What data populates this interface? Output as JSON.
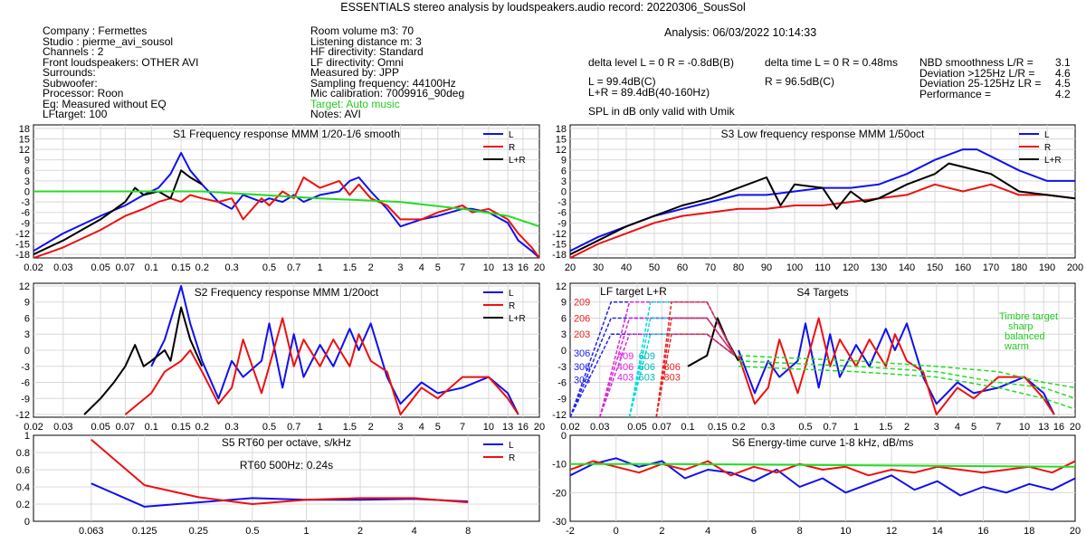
{
  "title": "ESSENTIALS stereo analysis by loudspeakers.audio       record: 20220306_SousSol",
  "info_left": [
    "Company : Fermettes",
    "Studio : pierme_avi_sousol",
    "Channels : 2",
    "Front loudspeakers: OTHER AVI",
    "Surrounds:",
    "Subwoofer:",
    "Processor: Roon",
    "Eq: Measured without EQ",
    "LFtarget: 100"
  ],
  "info_mid": [
    "Room volume m3: 70",
    "Listening distance m: 3",
    "HF directivity: Standard",
    "LF directivity: Omni",
    "Measured by: JPP",
    "Sampling frequency: 44100Hz",
    "Mic calibration: 7009916_90deg"
  ],
  "target_note": "Target: Auto music",
  "notes": "Notes: AVI",
  "analysis": "Analysis: 06/03/2022 10:14:33",
  "delta_level": "delta level L = 0  R = -0.8dB(B)",
  "delta_time": "delta time  L = 0  R = 0.48ms",
  "spl_l": "L =      99.4dB(C)",
  "spl_lr": "L+R = 89.4dB(40-160Hz)",
  "spl_r": "R =      96.5dB(C)",
  "spl_note": "SPL in dB only valid with Umik",
  "metrics": [
    {
      "label": "NBD smoothness L/R =",
      "value": "3.1"
    },
    {
      "label": "Deviation >125Hz L/R =",
      "value": "4.6"
    },
    {
      "label": "Deviation 25-125Hz LR =",
      "value": "4.5"
    },
    {
      "label": "Performance =",
      "value": "4.2"
    }
  ],
  "colors": {
    "L": "#1010ee",
    "R": "#ee1010",
    "LR": "#000000",
    "target": "#22dd22",
    "L_light": "#7777ee",
    "R_light": "#ee7777"
  },
  "chart_data": [
    {
      "id": "S1",
      "type": "line",
      "title": "S1  Frequency response MMM 1/20-1/6 smooth",
      "xscale": "log",
      "xunit": "kHz",
      "xlim": [
        0.02,
        20
      ],
      "ylim": [
        -19,
        19
      ],
      "xticks": [
        "0.02",
        "0.03",
        "0.05",
        "0.07",
        "0.1",
        "0.15",
        "0.2",
        "0.3",
        "0.5",
        "0.7",
        "1",
        "1.5",
        "2",
        "3",
        "4",
        "5",
        "7",
        "10",
        "13",
        "16",
        "20"
      ],
      "yticks": [
        "18",
        "15",
        "12",
        "9",
        "6",
        "3",
        "0",
        "-3",
        "-6",
        "-9",
        "-12",
        "-15",
        "-18"
      ],
      "legend": [
        "L",
        "R",
        "L+R"
      ],
      "series": [
        {
          "name": "L",
          "x": [
            0.02,
            0.03,
            0.05,
            0.07,
            0.09,
            0.11,
            0.13,
            0.15,
            0.17,
            0.2,
            0.25,
            0.3,
            0.35,
            0.45,
            0.5,
            0.6,
            0.7,
            0.8,
            1.0,
            1.3,
            1.5,
            1.7,
            2.0,
            2.5,
            3.0,
            4.0,
            5.0,
            7.0,
            8.0,
            10,
            13,
            15,
            18,
            20
          ],
          "y": [
            -17,
            -12,
            -7,
            -4,
            -1,
            1,
            5,
            11,
            6,
            2,
            -3,
            -5,
            -1,
            -3,
            -2,
            -3,
            -1,
            -3,
            -1,
            0,
            3,
            4,
            0,
            -5,
            -10,
            -8,
            -7,
            -5,
            -5,
            -6,
            -9,
            -14,
            -17,
            -19
          ]
        },
        {
          "name": "R",
          "x": [
            0.02,
            0.03,
            0.05,
            0.07,
            0.09,
            0.11,
            0.13,
            0.15,
            0.17,
            0.2,
            0.25,
            0.3,
            0.35,
            0.45,
            0.5,
            0.6,
            0.7,
            0.8,
            1.0,
            1.3,
            1.5,
            1.7,
            2.0,
            2.5,
            3.0,
            4.0,
            5.0,
            7.0,
            8.0,
            10,
            13,
            15,
            18,
            20
          ],
          "y": [
            -19,
            -16,
            -11,
            -7,
            -5,
            -3,
            -2,
            -3,
            -1,
            -2,
            -3,
            -2,
            -8,
            -2,
            -4,
            0,
            -2,
            4,
            1,
            3,
            -1,
            2,
            -2,
            -4,
            -8,
            -8,
            -6,
            -4,
            -6,
            -5,
            -8,
            -12,
            -16,
            -19
          ]
        },
        {
          "name": "L+R",
          "x": [
            0.02,
            0.03,
            0.05,
            0.07,
            0.08,
            0.09,
            0.11,
            0.13,
            0.15,
            0.17,
            0.2
          ],
          "y": [
            -18,
            -14,
            -8,
            -3,
            1,
            -1,
            0,
            -2,
            6,
            4,
            2
          ]
        },
        {
          "name": "target",
          "x": [
            0.02,
            0.2,
            1,
            3,
            7,
            13,
            20
          ],
          "y": [
            0,
            0,
            -2,
            -3,
            -5,
            -7,
            -10
          ]
        }
      ]
    },
    {
      "id": "S3",
      "type": "line",
      "title": "S3  Low frequency response MMM 1/50oct",
      "xscale": "linear",
      "xunit": "Hz",
      "xlim": [
        20,
        200
      ],
      "ylim": [
        -19,
        19
      ],
      "xticks": [
        "20",
        "30",
        "40",
        "50",
        "60",
        "70",
        "80",
        "90",
        "100",
        "110",
        "120",
        "130",
        "140",
        "150",
        "160",
        "170",
        "180",
        "190",
        "200"
      ],
      "yticks": [
        "18",
        "15",
        "12",
        "9",
        "6",
        "3",
        "0",
        "-3",
        "-6",
        "-9",
        "-12",
        "-15",
        "-18"
      ],
      "legend": [
        "L",
        "R",
        "L+R"
      ],
      "series": [
        {
          "name": "L",
          "x": [
            20,
            30,
            40,
            50,
            60,
            70,
            80,
            90,
            100,
            110,
            120,
            130,
            140,
            150,
            160,
            165,
            170,
            180,
            190,
            200
          ],
          "y": [
            -17,
            -13,
            -10,
            -7,
            -5,
            -3,
            -1,
            -1,
            0,
            1,
            1,
            2,
            5,
            9,
            12,
            12,
            10,
            6,
            3,
            3
          ]
        },
        {
          "name": "R",
          "x": [
            20,
            30,
            40,
            50,
            60,
            70,
            80,
            90,
            100,
            110,
            120,
            130,
            140,
            150,
            160,
            170,
            180,
            190,
            200
          ],
          "y": [
            -19,
            -15,
            -12,
            -9,
            -7,
            -6,
            -5,
            -5,
            -4,
            -4,
            -3,
            -2,
            -1,
            2,
            0,
            2,
            -1,
            -1,
            -2
          ]
        },
        {
          "name": "L+R",
          "x": [
            20,
            30,
            40,
            50,
            60,
            70,
            80,
            90,
            95,
            100,
            110,
            115,
            120,
            125,
            130,
            140,
            150,
            155,
            160,
            170,
            180,
            190,
            200
          ],
          "y": [
            -18,
            -14,
            -10,
            -7,
            -4,
            -2,
            1,
            4,
            -4,
            2,
            1,
            -5,
            0,
            -3,
            -2,
            2,
            5,
            8,
            7,
            5,
            0,
            -1,
            -2
          ]
        }
      ]
    },
    {
      "id": "S2",
      "type": "line",
      "title": "S2  Frequency response MMM 1/20oct",
      "xscale": "log",
      "xunit": "kHz",
      "xlim": [
        0.02,
        20
      ],
      "ylim": [
        -12.5,
        12.5
      ],
      "xticks": [
        "0.02",
        "0.03",
        "0.05",
        "0.07",
        "0.1",
        "0.15",
        "0.2",
        "0.3",
        "0.5",
        "0.7",
        "1",
        "1.5",
        "2",
        "3",
        "4",
        "5",
        "7",
        "10",
        "13",
        "16",
        "20"
      ],
      "yticks": [
        "12",
        "9",
        "6",
        "3",
        "0",
        "-3",
        "-6",
        "-9",
        "-12"
      ],
      "legend": [
        "L",
        "R",
        "L+R"
      ],
      "series": [
        {
          "name": "L",
          "x": [
            0.1,
            0.12,
            0.15,
            0.17,
            0.2,
            0.25,
            0.3,
            0.35,
            0.45,
            0.5,
            0.6,
            0.7,
            0.8,
            1.0,
            1.2,
            1.5,
            1.7,
            2.0,
            2.5,
            3.0,
            4.0,
            5.0,
            7.0,
            10,
            13,
            15
          ],
          "y": [
            -3,
            2,
            12,
            5,
            -2,
            -9,
            -2,
            -5,
            -2,
            5,
            -7,
            3,
            -5,
            1,
            -3,
            4,
            0,
            5,
            -5,
            -10,
            -6,
            -8,
            -7,
            -5,
            -8,
            -12
          ]
        },
        {
          "name": "R",
          "x": [
            0.07,
            0.1,
            0.12,
            0.15,
            0.17,
            0.2,
            0.25,
            0.3,
            0.35,
            0.45,
            0.5,
            0.6,
            0.7,
            0.8,
            1.0,
            1.2,
            1.5,
            1.7,
            2.0,
            2.5,
            3.0,
            4.0,
            5.0,
            7.0,
            10,
            13,
            15
          ],
          "y": [
            -12,
            -8,
            -4,
            -2,
            0,
            -4,
            -10,
            -7,
            2,
            -8,
            -3,
            6,
            -3,
            2,
            -3,
            2,
            -3,
            3,
            -2,
            -4,
            -12,
            -7,
            -9,
            -5,
            -5,
            -9,
            -12
          ]
        },
        {
          "name": "L+R",
          "x": [
            0.04,
            0.05,
            0.06,
            0.07,
            0.08,
            0.09,
            0.1,
            0.12,
            0.13,
            0.15,
            0.17,
            0.2
          ],
          "y": [
            -12,
            -9,
            -6,
            -3,
            1,
            -3,
            -2,
            0,
            -2,
            8,
            2,
            -3
          ]
        }
      ]
    },
    {
      "id": "S4",
      "type": "line",
      "title": "S4 Targets",
      "xscale": "log",
      "xunit": "kHz",
      "xlim": [
        0.02,
        20
      ],
      "ylim": [
        -12.5,
        12.5
      ],
      "xticks": [
        "0.02",
        "0.03",
        "0.05",
        "0.07",
        "0.1",
        "0.15",
        "0.2",
        "0.3",
        "0.5",
        "0.7",
        "1",
        "1.5",
        "2",
        "3",
        "4",
        "5",
        "7",
        "10",
        "13",
        "16",
        "20"
      ],
      "yticks": [
        "12",
        "9",
        "6",
        "3",
        "0",
        "-3",
        "-6",
        "-9",
        "-12"
      ],
      "lf_target_label": "LF target L+R",
      "timbre_labels": [
        "Timbre target",
        "sharp",
        "balanced",
        "warm"
      ],
      "target_labels": [
        "209",
        "206",
        "203",
        "306",
        "306",
        "303",
        "409",
        "406",
        "403",
        "609",
        "606",
        "603",
        "806",
        "803"
      ],
      "series": [
        {
          "name": "L",
          "x": [
            0.2,
            0.25,
            0.3,
            0.35,
            0.45,
            0.5,
            0.6,
            0.7,
            0.8,
            1.0,
            1.2,
            1.5,
            1.7,
            2.0,
            2.5,
            3.0,
            4.0,
            5.0,
            7.0,
            10,
            13,
            15
          ],
          "y": [
            0,
            -8,
            -2,
            -5,
            -2,
            5,
            -7,
            3,
            -5,
            1,
            -3,
            4,
            0,
            5,
            -5,
            -10,
            -6,
            -8,
            -7,
            -5,
            -8,
            -12
          ]
        },
        {
          "name": "R",
          "x": [
            0.2,
            0.25,
            0.3,
            0.35,
            0.45,
            0.5,
            0.6,
            0.7,
            0.8,
            1.0,
            1.2,
            1.5,
            1.7,
            2.0,
            2.5,
            3.0,
            4.0,
            5.0,
            7.0,
            10,
            13,
            15
          ],
          "y": [
            -1,
            -10,
            -7,
            2,
            -8,
            -3,
            6,
            -3,
            2,
            -3,
            2,
            -3,
            3,
            -2,
            -4,
            -12,
            -7,
            -9,
            -5,
            -5,
            -9,
            -12
          ]
        },
        {
          "name": "L+R",
          "x": [
            0.1,
            0.13,
            0.15,
            0.17,
            0.2
          ],
          "y": [
            -3,
            -1,
            6,
            2,
            -2
          ]
        },
        {
          "name": "sharp",
          "x": [
            0.2,
            1,
            3,
            7,
            13,
            20
          ],
          "y": [
            -1,
            -2,
            -3,
            -4,
            -6,
            -7
          ]
        },
        {
          "name": "balanced",
          "x": [
            0.2,
            1,
            3,
            7,
            13,
            20
          ],
          "y": [
            -2,
            -3,
            -4,
            -6,
            -7,
            -9
          ]
        },
        {
          "name": "warm",
          "x": [
            0.2,
            1,
            3,
            7,
            13,
            20
          ],
          "y": [
            -3,
            -4,
            -5,
            -7,
            -9,
            -11
          ]
        }
      ]
    },
    {
      "id": "S5",
      "type": "line",
      "title": "S5  RT60 per octave, s/kHz",
      "annotation": "RT60 500Hz: 0.24s",
      "xscale": "log",
      "xunit": "kHz",
      "xlim": [
        0.03,
        20
      ],
      "ylim": [
        0,
        1.0
      ],
      "xticks": [
        "0.063",
        "0.125",
        "0.25",
        "0.5",
        "1",
        "2",
        "4",
        "8"
      ],
      "yticks": [
        "1",
        "0.8",
        "0.6",
        "0.4",
        "0.2",
        "0"
      ],
      "legend": [
        "L",
        "R"
      ],
      "series": [
        {
          "name": "L",
          "x": [
            0.063,
            0.125,
            0.25,
            0.5,
            1,
            2,
            4,
            8
          ],
          "y": [
            0.44,
            0.17,
            0.22,
            0.27,
            0.25,
            0.25,
            0.26,
            0.23
          ]
        },
        {
          "name": "R",
          "x": [
            0.063,
            0.125,
            0.25,
            0.5,
            1,
            2,
            4,
            8
          ],
          "y": [
            0.95,
            0.42,
            0.28,
            0.2,
            0.25,
            0.27,
            0.27,
            0.22
          ]
        }
      ]
    },
    {
      "id": "S6",
      "type": "line",
      "title": "S6  Energy-time curve 1-8 kHz, dB/ms",
      "xscale": "linear",
      "xunit": "ms",
      "xlim": [
        -2,
        20
      ],
      "ylim": [
        -30,
        0
      ],
      "xticks": [
        "-2",
        "0",
        "2",
        "4",
        "6",
        "8",
        "10",
        "12",
        "14",
        "16",
        "18",
        "20"
      ],
      "yticks": [
        "0",
        "-10",
        "-20",
        "-30"
      ],
      "series": [
        {
          "name": "L",
          "x": [
            -2,
            -1,
            0,
            1,
            2,
            3,
            4,
            5,
            6,
            7,
            8,
            9,
            10,
            11,
            12,
            13,
            14,
            15,
            16,
            17,
            18,
            19,
            20
          ],
          "y": [
            -14,
            -10,
            -8,
            -11,
            -9,
            -15,
            -12,
            -13,
            -16,
            -12,
            -18,
            -15,
            -20,
            -17,
            -14,
            -19,
            -16,
            -21,
            -18,
            -20,
            -17,
            -19,
            -15
          ]
        },
        {
          "name": "R",
          "x": [
            -2,
            -1,
            0,
            1,
            2,
            3,
            4,
            5,
            6,
            7,
            8,
            9,
            10,
            11,
            12,
            13,
            14,
            15,
            16,
            17,
            18,
            19,
            20
          ],
          "y": [
            -12,
            -9,
            -11,
            -13,
            -10,
            -12,
            -9,
            -14,
            -11,
            -13,
            -10,
            -12,
            -11,
            -14,
            -12,
            -13,
            -11,
            -12,
            -13,
            -12,
            -11,
            -13,
            -9
          ]
        },
        {
          "name": "target",
          "x": [
            -2,
            2,
            20
          ],
          "y": [
            -10,
            -10,
            -11
          ]
        }
      ]
    }
  ]
}
